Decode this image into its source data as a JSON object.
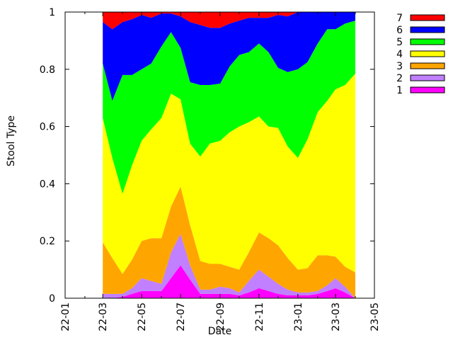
{
  "chart_data": {
    "type": "area",
    "stacked": true,
    "normalized": true,
    "xlabel": "Date",
    "ylabel": "Stool Type",
    "xlim": [
      "2022-01",
      "2023-05"
    ],
    "ylim": [
      0,
      1
    ],
    "x_ticks": [
      "22-01",
      "22-03",
      "22-05",
      "22-07",
      "22-09",
      "22-11",
      "23-01",
      "23-03",
      "23-05"
    ],
    "y_ticks": [
      "0",
      "0.2",
      "0.4",
      "0.6",
      "0.8",
      "1"
    ],
    "grid": false,
    "legend_position": "top-right outside",
    "x": [
      "2022-03-01",
      "2022-03-16",
      "2022-04-01",
      "2022-04-16",
      "2022-05-01",
      "2022-05-16",
      "2022-06-01",
      "2022-06-16",
      "2022-07-01",
      "2022-07-16",
      "2022-08-01",
      "2022-08-16",
      "2022-09-01",
      "2022-09-16",
      "2022-10-01",
      "2022-10-16",
      "2022-11-01",
      "2022-11-16",
      "2022-12-01",
      "2022-12-16",
      "2023-01-01",
      "2023-01-16",
      "2023-02-01",
      "2023-02-16",
      "2023-03-01",
      "2023-03-16",
      "2023-04-01"
    ],
    "series": [
      {
        "name": "1",
        "color": "#ff00ff",
        "values": [
          0.0,
          0.0,
          0.005,
          0.015,
          0.025,
          0.025,
          0.025,
          0.07,
          0.115,
          0.065,
          0.015,
          0.015,
          0.015,
          0.015,
          0.01,
          0.02,
          0.035,
          0.025,
          0.015,
          0.01,
          0.01,
          0.01,
          0.015,
          0.025,
          0.035,
          0.02,
          0.0
        ]
      },
      {
        "name": "2",
        "color": "#c080ff",
        "values": [
          0.015,
          0.015,
          0.01,
          0.02,
          0.045,
          0.035,
          0.025,
          0.09,
          0.11,
          0.05,
          0.015,
          0.015,
          0.025,
          0.02,
          0.01,
          0.04,
          0.065,
          0.05,
          0.035,
          0.02,
          0.01,
          0.01,
          0.01,
          0.02,
          0.035,
          0.02,
          0.0
        ]
      },
      {
        "name": "3",
        "color": "#ffa500",
        "values": [
          0.18,
          0.125,
          0.07,
          0.1,
          0.13,
          0.15,
          0.16,
          0.16,
          0.165,
          0.14,
          0.1,
          0.09,
          0.08,
          0.075,
          0.08,
          0.1,
          0.13,
          0.135,
          0.135,
          0.11,
          0.08,
          0.085,
          0.125,
          0.105,
          0.075,
          0.07,
          0.09
        ]
      },
      {
        "name": "4",
        "color": "#ffff00",
        "values": [
          0.435,
          0.35,
          0.28,
          0.33,
          0.35,
          0.38,
          0.42,
          0.395,
          0.305,
          0.285,
          0.365,
          0.42,
          0.43,
          0.47,
          0.5,
          0.455,
          0.405,
          0.39,
          0.41,
          0.39,
          0.39,
          0.45,
          0.5,
          0.54,
          0.585,
          0.635,
          0.695
        ]
      },
      {
        "name": "5",
        "color": "#00ff00",
        "values": [
          0.19,
          0.2,
          0.415,
          0.315,
          0.25,
          0.23,
          0.25,
          0.215,
          0.18,
          0.215,
          0.25,
          0.205,
          0.2,
          0.23,
          0.25,
          0.245,
          0.255,
          0.26,
          0.21,
          0.26,
          0.31,
          0.27,
          0.24,
          0.25,
          0.21,
          0.215,
          0.185
        ]
      },
      {
        "name": "6",
        "color": "#0000ff",
        "values": [
          0.145,
          0.25,
          0.185,
          0.195,
          0.19,
          0.16,
          0.115,
          0.065,
          0.11,
          0.21,
          0.21,
          0.2,
          0.195,
          0.15,
          0.12,
          0.12,
          0.09,
          0.12,
          0.185,
          0.195,
          0.2,
          0.175,
          0.11,
          0.06,
          0.06,
          0.04,
          0.03
        ]
      },
      {
        "name": "7",
        "color": "#ff0000",
        "values": [
          0.035,
          0.06,
          0.035,
          0.025,
          0.01,
          0.02,
          0.005,
          0.005,
          0.015,
          0.035,
          0.045,
          0.055,
          0.055,
          0.04,
          0.03,
          0.02,
          0.02,
          0.02,
          0.01,
          0.015,
          0.0,
          0.0,
          0.0,
          0.0,
          0.0,
          0.0,
          0.0
        ]
      }
    ]
  }
}
